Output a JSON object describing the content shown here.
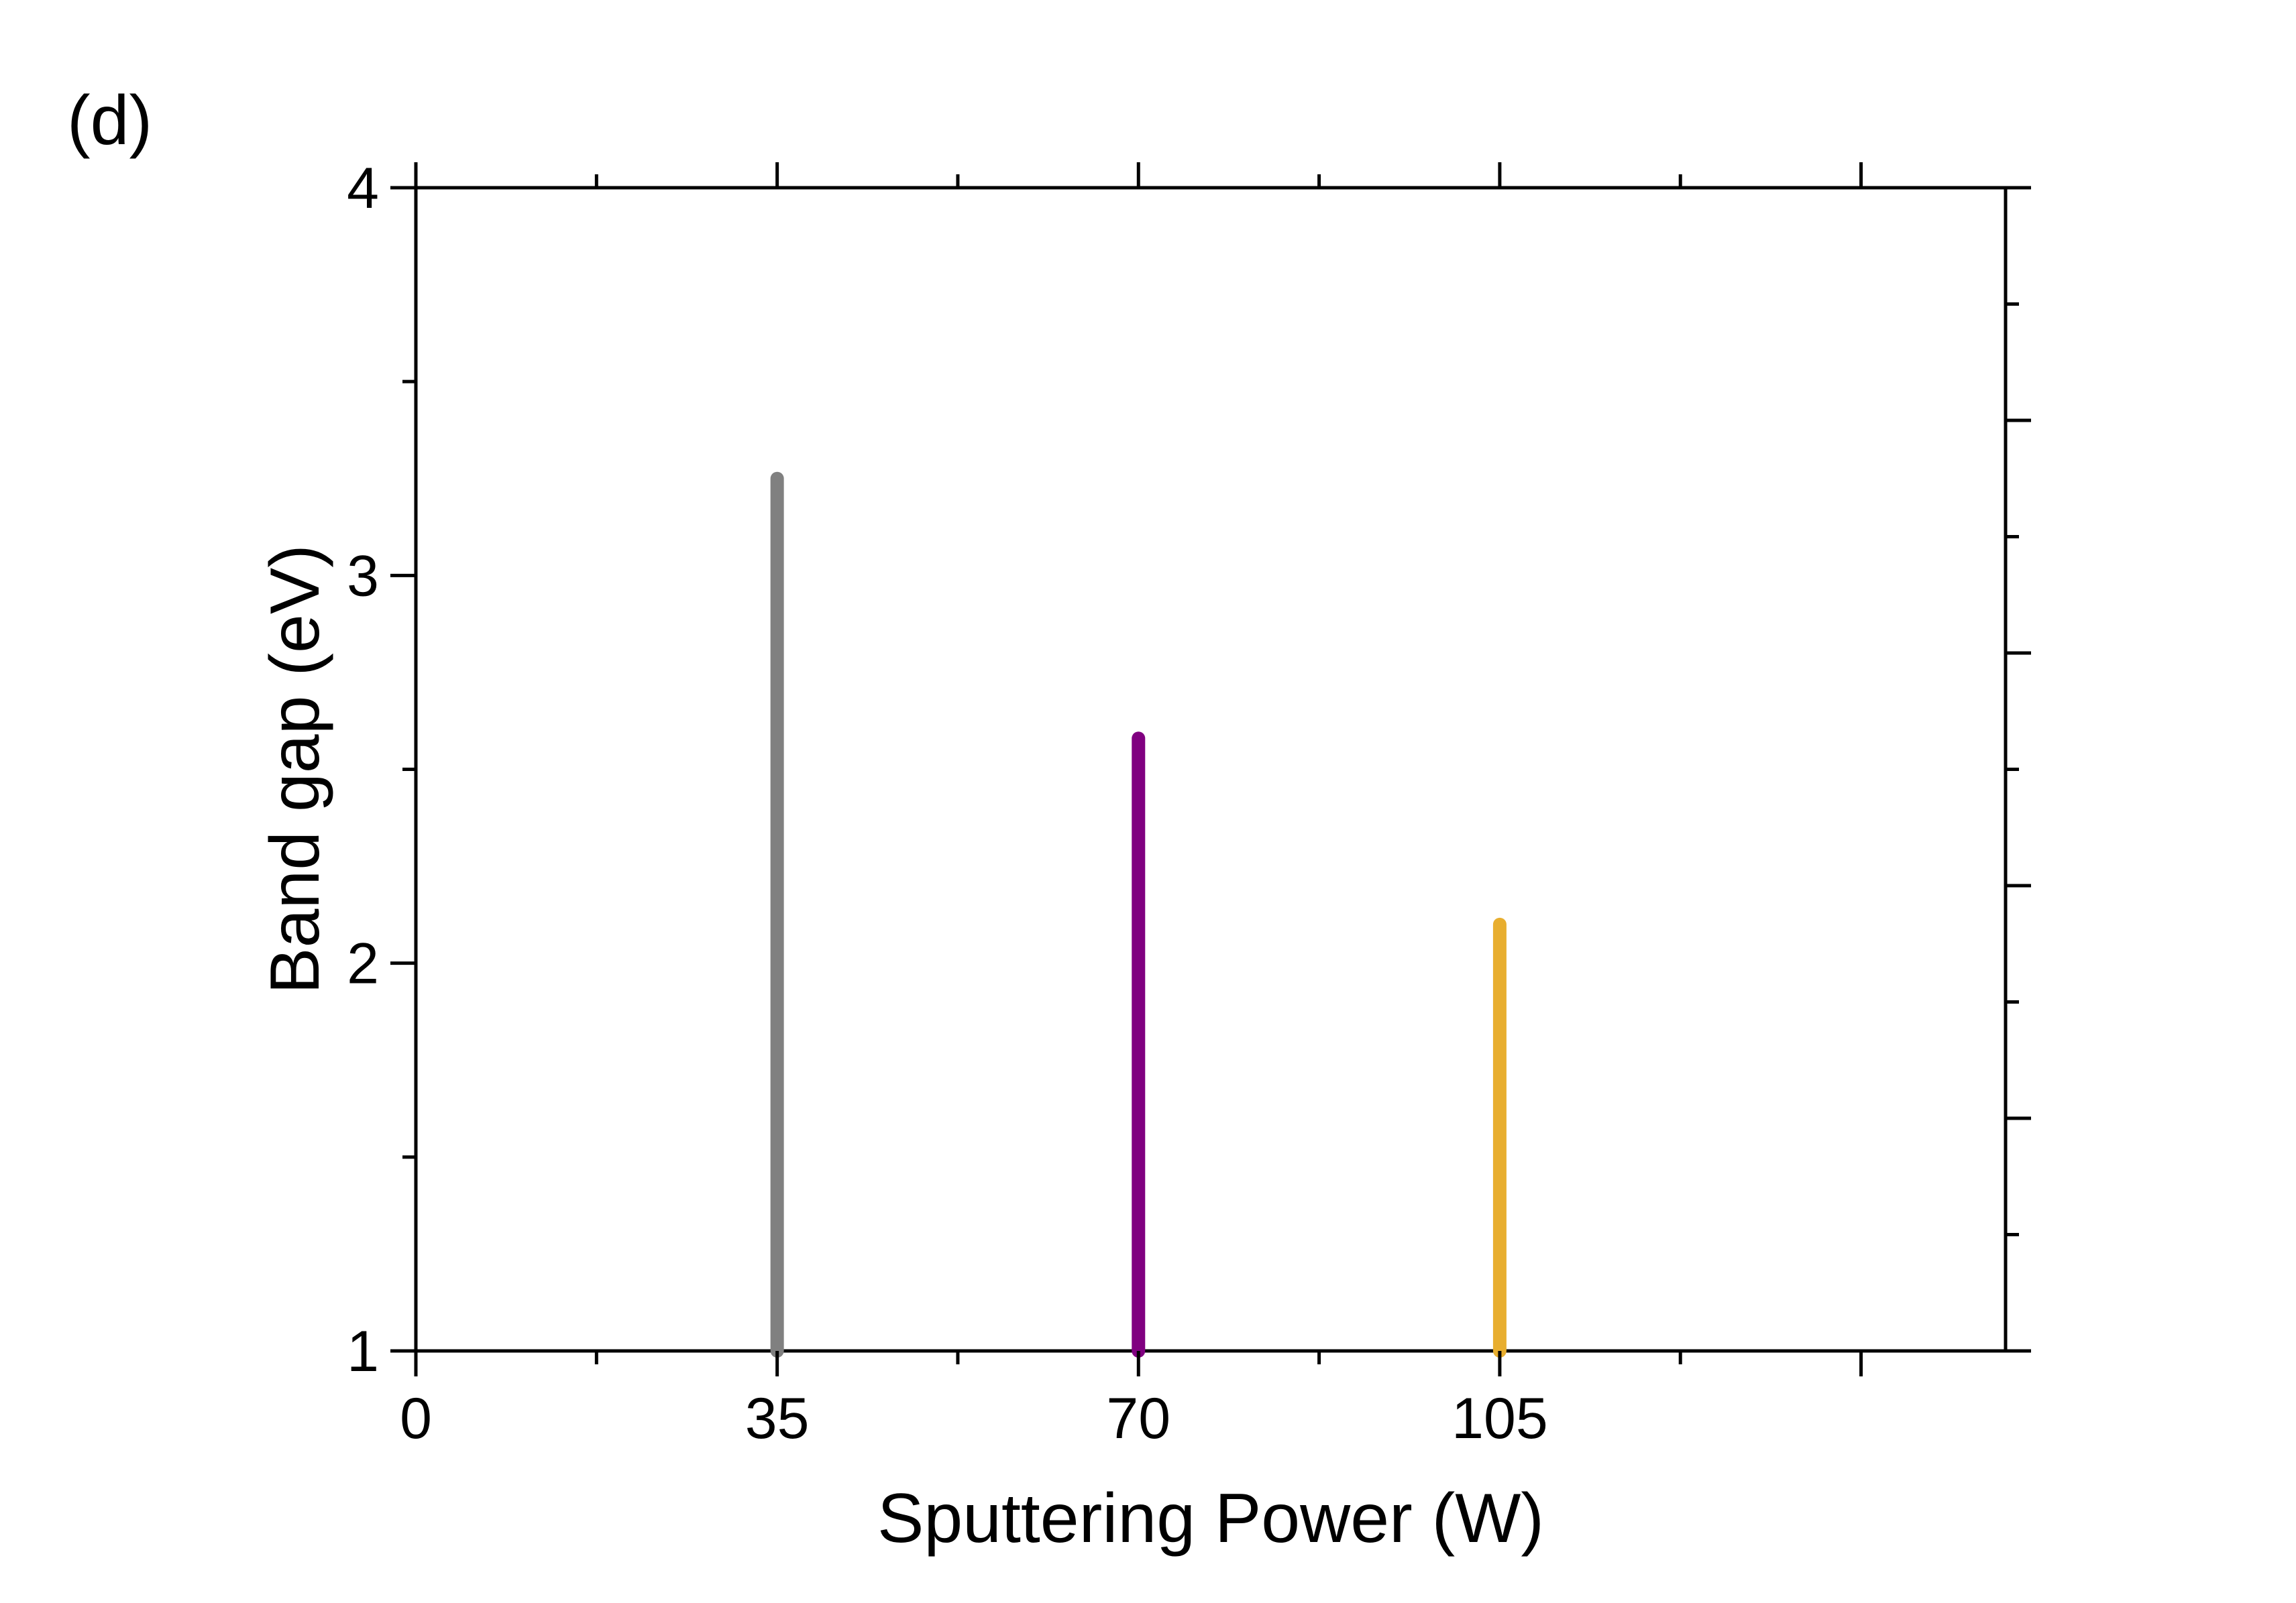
{
  "panel_label": "(d)",
  "chart_data": {
    "type": "bar",
    "xlabel": "Sputtering Power (W)",
    "ylabel": "Band gap (eV)",
    "xlim": [
      0,
      154
    ],
    "ylim": [
      1,
      4
    ],
    "x_ticks": [
      0,
      35,
      70,
      105
    ],
    "y_ticks": [
      1,
      2,
      3,
      4
    ],
    "bars": [
      {
        "x": 35,
        "value": 3.25,
        "color": "#808080"
      },
      {
        "x": 70,
        "value": 2.58,
        "color": "#800080"
      },
      {
        "x": 105,
        "value": 2.1,
        "color": "#E8AE2F"
      }
    ],
    "grid": false,
    "legend": "none"
  }
}
